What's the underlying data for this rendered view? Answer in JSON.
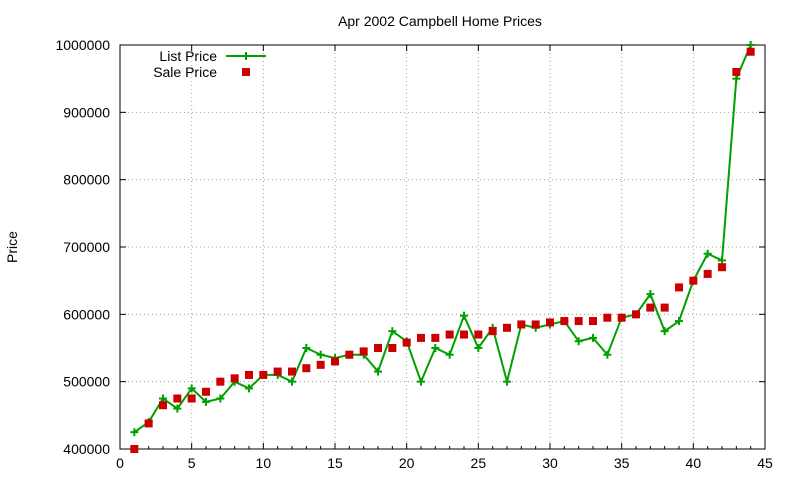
{
  "chart_data": {
    "type": "line",
    "title": "Apr 2002 Campbell Home Prices",
    "xlabel": "",
    "ylabel": "Price",
    "xlim": [
      0,
      45
    ],
    "ylim": [
      400000,
      1000000
    ],
    "xticks": [
      0,
      5,
      10,
      15,
      20,
      25,
      30,
      35,
      40,
      45
    ],
    "yticks": [
      400000,
      500000,
      600000,
      700000,
      800000,
      900000,
      1000000
    ],
    "grid": true,
    "legend_position": "top-left",
    "series": [
      {
        "name": "List Price",
        "style": "line+cross",
        "color": "#00a000",
        "x": [
          1,
          2,
          3,
          4,
          5,
          6,
          7,
          8,
          9,
          10,
          11,
          12,
          13,
          14,
          15,
          16,
          17,
          18,
          19,
          20,
          21,
          22,
          23,
          24,
          25,
          26,
          27,
          28,
          29,
          30,
          31,
          32,
          33,
          34,
          35,
          36,
          37,
          38,
          39,
          40,
          41,
          42,
          43,
          44
        ],
        "values": [
          425000,
          440000,
          475000,
          460000,
          490000,
          470000,
          475000,
          500000,
          490000,
          510000,
          510000,
          500000,
          550000,
          540000,
          535000,
          540000,
          540000,
          515000,
          575000,
          560000,
          500000,
          550000,
          540000,
          598000,
          550000,
          580000,
          500000,
          585000,
          580000,
          585000,
          590000,
          560000,
          565000,
          540000,
          595000,
          600000,
          630000,
          575000,
          590000,
          650000,
          690000,
          680000,
          950000,
          1000000
        ]
      },
      {
        "name": "Sale Price",
        "style": "square",
        "color": "#cc0000",
        "x": [
          1,
          2,
          3,
          4,
          5,
          6,
          7,
          8,
          9,
          10,
          11,
          12,
          13,
          14,
          15,
          16,
          17,
          18,
          19,
          20,
          21,
          22,
          23,
          24,
          25,
          26,
          27,
          28,
          29,
          30,
          31,
          32,
          33,
          34,
          35,
          36,
          37,
          38,
          39,
          40,
          41,
          42,
          43,
          44
        ],
        "values": [
          400000,
          438000,
          465000,
          475000,
          475000,
          485000,
          500000,
          505000,
          510000,
          510000,
          515000,
          515000,
          520000,
          525000,
          530000,
          540000,
          545000,
          550000,
          550000,
          558000,
          565000,
          565000,
          570000,
          570000,
          570000,
          575000,
          580000,
          585000,
          585000,
          588000,
          590000,
          590000,
          590000,
          595000,
          595000,
          600000,
          610000,
          610000,
          640000,
          650000,
          660000,
          670000,
          960000,
          990000
        ]
      }
    ]
  }
}
